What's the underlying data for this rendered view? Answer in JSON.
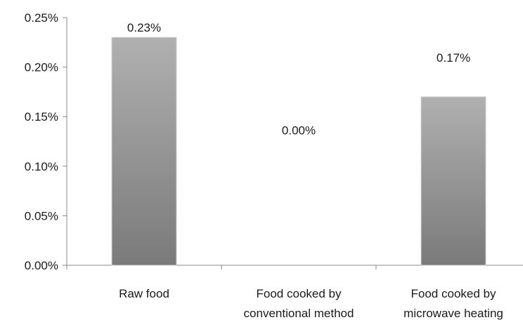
{
  "chart_data": {
    "type": "bar",
    "categories": [
      [
        "Raw food"
      ],
      [
        "Food cooked by",
        "conventional method"
      ],
      [
        "Food cooked by",
        "microwave heating"
      ]
    ],
    "values": [
      0.23,
      0.0,
      0.17
    ],
    "data_labels": [
      "0.23%",
      "0.00%",
      "0.17%"
    ],
    "y_ticks": [
      "0.00%",
      "0.05%",
      "0.10%",
      "0.15%",
      "0.20%",
      "0.25%"
    ],
    "ylim": [
      0,
      0.25
    ],
    "title": "",
    "xlabel": "",
    "ylabel": "",
    "grid": false,
    "legend": "none",
    "bar_color_top": "#b0b0b0",
    "bar_color_bottom": "#7a7a7a"
  }
}
